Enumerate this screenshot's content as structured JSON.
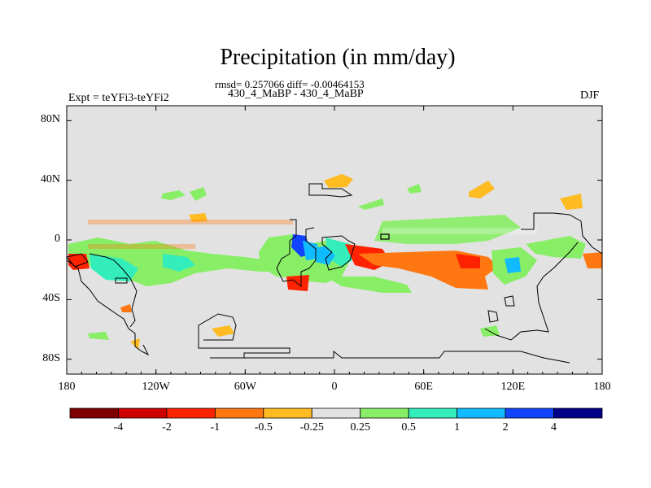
{
  "title": "Precipitation (in mm/day)",
  "subtitle": "rmsd= 0.257066 diff= -0.00464153",
  "experiment": "430_4_MaBP - 430_4_MaBP",
  "left_label": "Expt = teYFi3-teYFi2",
  "right_label": "DJF",
  "map": {
    "projection": "cylindrical equidistant",
    "lon_range": [
      -180,
      180
    ],
    "lat_range": [
      -90,
      90
    ],
    "x_ticks": [
      {
        "value": -180,
        "label": "180"
      },
      {
        "value": -120,
        "label": "120W"
      },
      {
        "value": -60,
        "label": "60W"
      },
      {
        "value": 0,
        "label": "0"
      },
      {
        "value": 60,
        "label": "60E"
      },
      {
        "value": 120,
        "label": "120E"
      },
      {
        "value": 180,
        "label": "180"
      }
    ],
    "y_ticks": [
      {
        "value": 80,
        "label": "80N"
      },
      {
        "value": 40,
        "label": "40N"
      },
      {
        "value": 0,
        "label": "0"
      },
      {
        "value": -40,
        "label": "40S"
      },
      {
        "value": -80,
        "label": "80S"
      }
    ],
    "background_color": "#e2e2e2"
  },
  "colorbar": {
    "colors": [
      "#7f0000",
      "#cc0000",
      "#ff2200",
      "#ff7711",
      "#ffbb22",
      "#e2e2e2",
      "#88ee66",
      "#33eebb",
      "#11bbff",
      "#1144ff",
      "#000088"
    ],
    "labels": [
      "-4",
      "-2",
      "-1",
      "-0.5",
      "-0.25",
      "0.25",
      "0.5",
      "1",
      "2",
      "4"
    ]
  }
}
